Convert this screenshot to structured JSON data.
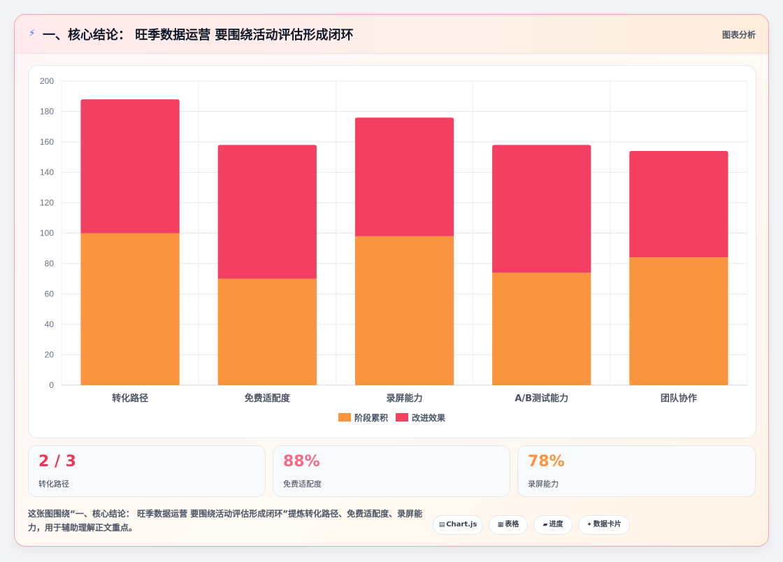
{
  "header": {
    "title": "一、核心结论： 旺季数据运营 要围绕活动评估形成闭环",
    "tag": "图表分析",
    "icon": "lightning-icon"
  },
  "chart_data": {
    "type": "bar",
    "stacked": true,
    "categories": [
      "转化路径",
      "免费适配度",
      "录屏能力",
      "A/B测试能力",
      "团队协作"
    ],
    "series": [
      {
        "name": "阶段累积",
        "color": "#fa943e",
        "values": [
          100,
          70,
          98,
          74,
          84
        ]
      },
      {
        "name": "改进效果",
        "color": "#f33f61",
        "values": [
          88,
          88,
          78,
          84,
          70
        ]
      }
    ],
    "ylim": [
      0,
      200
    ],
    "yticks": [
      0,
      20,
      40,
      60,
      80,
      100,
      120,
      140,
      160,
      180,
      200
    ],
    "grid": true,
    "legend": "bottom"
  },
  "stats": [
    {
      "value": "2 / 3",
      "label": "转化路径",
      "color": "#e8395a"
    },
    {
      "value": "88%",
      "label": "免费适配度",
      "color": "#f56b85"
    },
    {
      "value": "78%",
      "label": "录屏能力",
      "color": "#fa943e"
    }
  ],
  "description": "这张图围绕“一、核心结论： 旺季数据运营 要围绕活动评估形成闭环”提炼转化路径、免费适配度、录屏能力，用于辅助理解正文重点。",
  "pills": [
    {
      "icon": "▤",
      "label": "Chart.js"
    },
    {
      "icon": "▦",
      "label": "表格"
    },
    {
      "icon": "▰",
      "label": "进度"
    },
    {
      "icon": "✦",
      "label": "数据卡片"
    }
  ]
}
